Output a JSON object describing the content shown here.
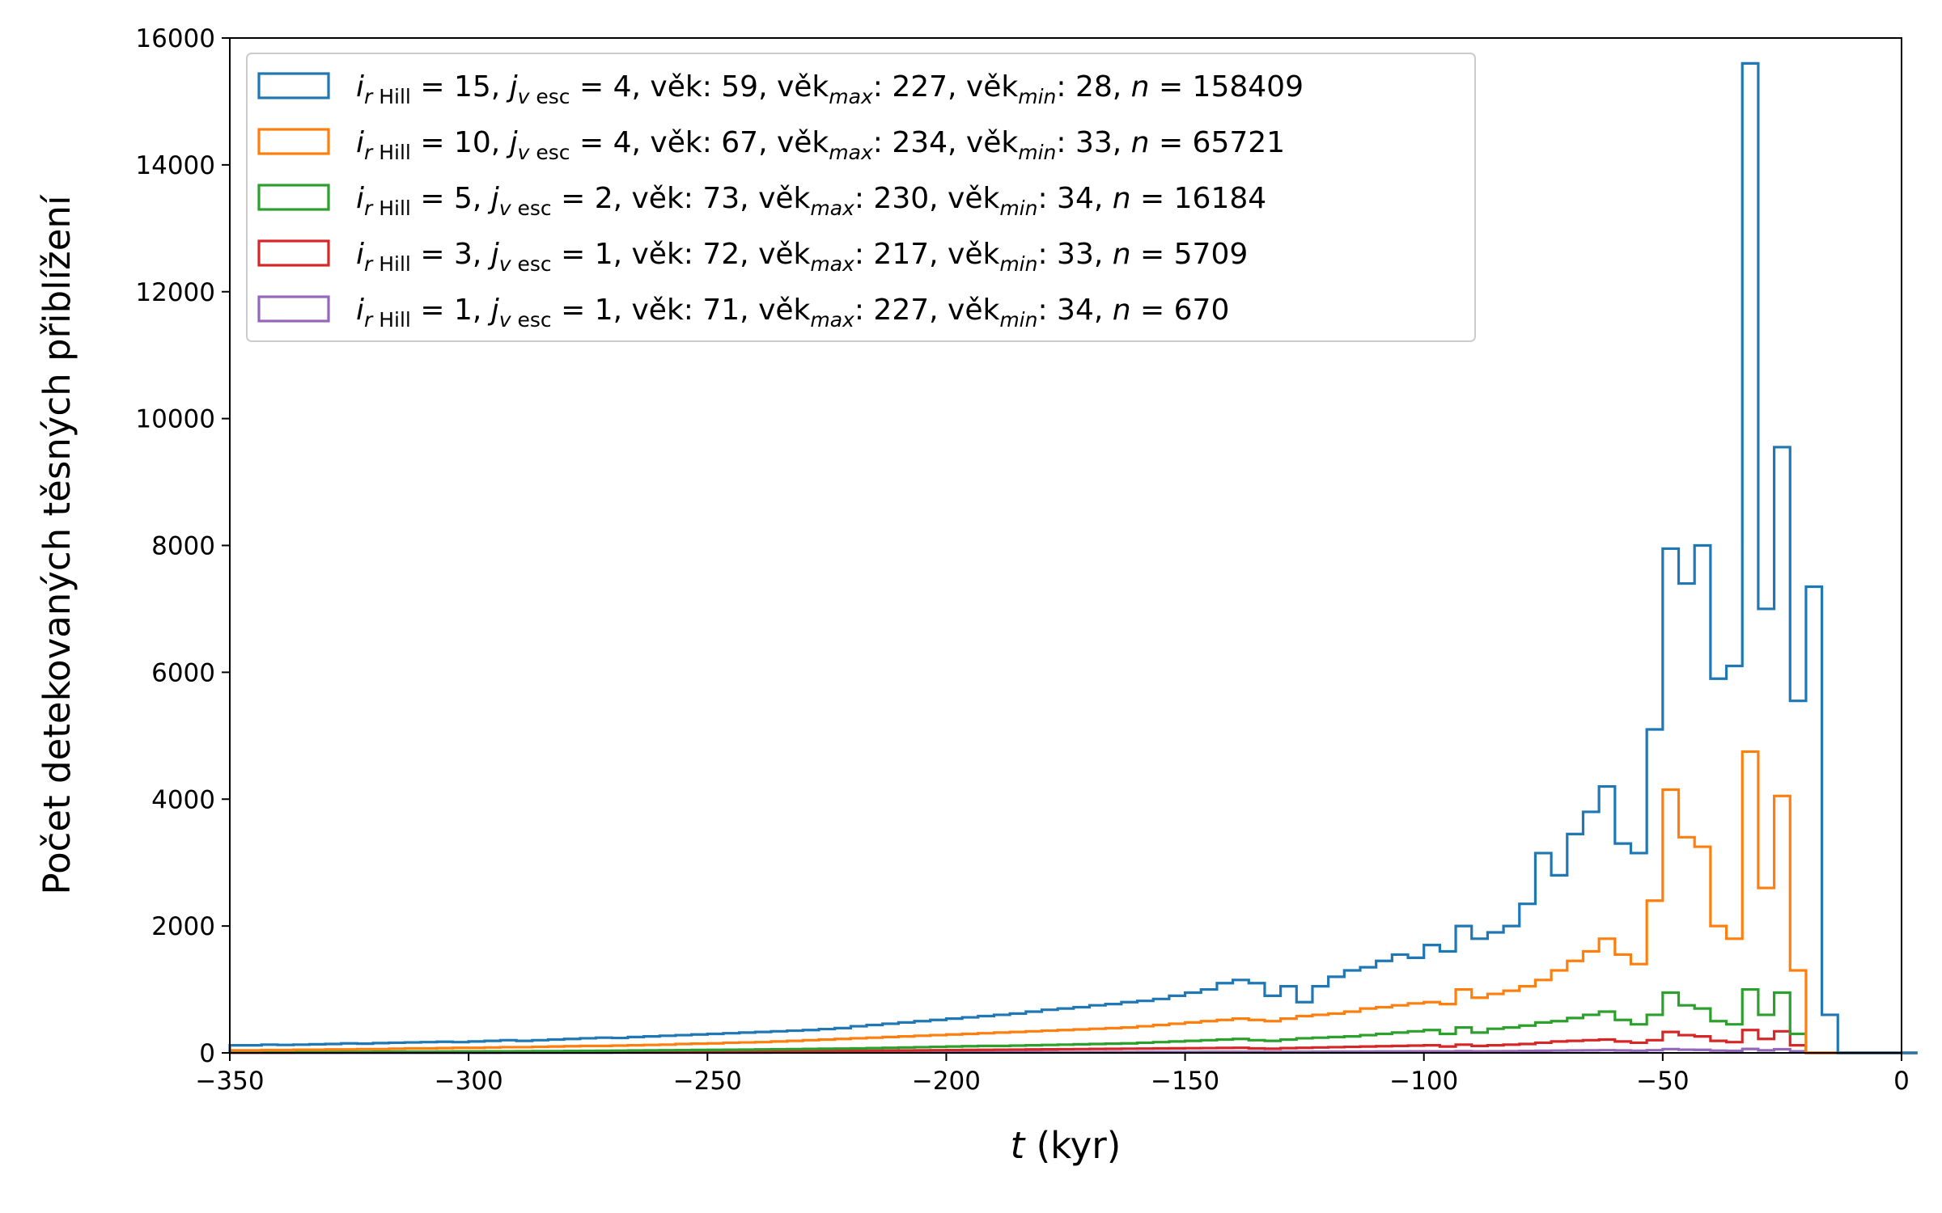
{
  "chart_data": {
    "type": "histogram-step",
    "xlabel_var": "t",
    "xlabel_unit": " (kyr)",
    "ylabel": "Počet detekovaných těsných přiblížení",
    "xlim": [
      -350,
      0
    ],
    "ylim": [
      0,
      16000
    ],
    "xticks": [
      -350,
      -300,
      -250,
      -200,
      -150,
      -100,
      -50,
      0
    ],
    "xtick_labels": [
      "−350",
      "−300",
      "−250",
      "−200",
      "−150",
      "−100",
      "−50",
      "0"
    ],
    "yticks": [
      0,
      2000,
      4000,
      6000,
      8000,
      10000,
      12000,
      14000,
      16000
    ],
    "ytick_labels": [
      "0",
      "2000",
      "4000",
      "6000",
      "8000",
      "10000",
      "12000",
      "14000",
      "16000"
    ],
    "bin_start": -350,
    "bin_width": 3.3333,
    "legend_position": "upper-left",
    "series": [
      {
        "color": "#1f77b4",
        "legend": {
          "i": "15",
          "j": "4",
          "vek": " 59",
          "vek_max": "227",
          "vek_min": "28",
          "n": "158409"
        },
        "values": [
          120,
          120,
          130,
          125,
          130,
          135,
          140,
          150,
          145,
          155,
          160,
          165,
          170,
          175,
          170,
          180,
          190,
          200,
          190,
          200,
          210,
          220,
          230,
          240,
          235,
          250,
          260,
          270,
          280,
          290,
          300,
          310,
          320,
          330,
          340,
          350,
          360,
          375,
          390,
          420,
          440,
          460,
          480,
          500,
          520,
          540,
          560,
          580,
          600,
          620,
          650,
          680,
          700,
          720,
          750,
          770,
          800,
          820,
          850,
          900,
          950,
          1000,
          1100,
          1150,
          1100,
          900,
          1050,
          800,
          1050,
          1200,
          1300,
          1350,
          1450,
          1550,
          1500,
          1700,
          1600,
          2000,
          1800,
          1900,
          2000,
          2350,
          3150,
          2800,
          3450,
          3800,
          4200,
          3300,
          3150,
          5100,
          7950,
          7400,
          8000,
          5900,
          6100,
          15600,
          7000,
          9550,
          5550,
          7350,
          600,
          0,
          0,
          0,
          0,
          0
        ]
      },
      {
        "color": "#ff7f0e",
        "legend": {
          "i": "10",
          "j": "4",
          "vek": " 67",
          "vek_max": "234",
          "vek_min": "33",
          "n": "65721"
        },
        "values": [
          40,
          40,
          45,
          45,
          50,
          50,
          55,
          55,
          60,
          60,
          65,
          70,
          70,
          75,
          80,
          80,
          85,
          90,
          90,
          95,
          100,
          105,
          110,
          110,
          115,
          120,
          125,
          130,
          140,
          145,
          150,
          160,
          165,
          170,
          180,
          190,
          200,
          210,
          220,
          230,
          240,
          250,
          260,
          270,
          280,
          290,
          300,
          310,
          320,
          330,
          340,
          350,
          360,
          370,
          380,
          390,
          400,
          420,
          440,
          460,
          480,
          500,
          520,
          540,
          520,
          500,
          540,
          580,
          600,
          620,
          650,
          700,
          720,
          750,
          780,
          800,
          770,
          1000,
          870,
          930,
          980,
          1050,
          1150,
          1300,
          1450,
          1600,
          1800,
          1550,
          1400,
          2400,
          4150,
          3400,
          3250,
          2000,
          1800,
          4750,
          2600,
          4050,
          1300,
          0,
          0,
          0,
          0,
          0,
          0,
          0
        ]
      },
      {
        "color": "#2ca02c",
        "legend": {
          "i": " 5",
          "j": "2",
          "vek": " 73",
          "vek_max": "230",
          "vek_min": "34",
          "n": "16184"
        },
        "values": [
          10,
          10,
          12,
          12,
          14,
          14,
          15,
          16,
          17,
          18,
          19,
          20,
          20,
          21,
          22,
          23,
          24,
          25,
          26,
          27,
          28,
          30,
          32,
          34,
          36,
          38,
          40,
          42,
          44,
          46,
          48,
          50,
          52,
          55,
          58,
          60,
          62,
          65,
          68,
          70,
          75,
          80,
          85,
          90,
          95,
          100,
          105,
          110,
          110,
          115,
          120,
          125,
          130,
          135,
          140,
          145,
          150,
          160,
          170,
          180,
          190,
          200,
          210,
          220,
          200,
          190,
          210,
          230,
          240,
          250,
          260,
          280,
          300,
          320,
          340,
          360,
          300,
          400,
          320,
          380,
          400,
          430,
          480,
          500,
          550,
          600,
          650,
          520,
          450,
          600,
          950,
          750,
          700,
          500,
          450,
          1000,
          600,
          950,
          300,
          0,
          0,
          0,
          0,
          0,
          0,
          0
        ]
      },
      {
        "color": "#d62728",
        "legend": {
          "i": " 3",
          "j": "1",
          "vek": " 72",
          "vek_max": "217",
          "vek_min": "33",
          "n": "5709"
        },
        "values": [
          5,
          5,
          5,
          5,
          6,
          6,
          6,
          7,
          7,
          7,
          8,
          8,
          8,
          9,
          9,
          10,
          10,
          11,
          11,
          12,
          12,
          13,
          14,
          15,
          16,
          17,
          18,
          19,
          20,
          21,
          22,
          23,
          24,
          25,
          26,
          27,
          28,
          29,
          30,
          32,
          34,
          36,
          38,
          40,
          42,
          44,
          46,
          48,
          50,
          52,
          54,
          56,
          58,
          60,
          62,
          64,
          66,
          68,
          70,
          72,
          74,
          76,
          78,
          80,
          70,
          65,
          75,
          80,
          85,
          90,
          95,
          100,
          105,
          110,
          115,
          120,
          100,
          130,
          110,
          120,
          130,
          140,
          160,
          180,
          190,
          200,
          210,
          180,
          160,
          200,
          330,
          280,
          260,
          190,
          170,
          360,
          220,
          340,
          120,
          0,
          0,
          0,
          0,
          0,
          0,
          0
        ]
      },
      {
        "color": "#9467bd",
        "legend": {
          "i": " 1",
          "j": "1",
          "vek": " 71",
          "vek_max": "227",
          "vek_min": "34",
          "n": "670"
        },
        "values": [
          1,
          1,
          1,
          1,
          1,
          1,
          1,
          1,
          1,
          2,
          2,
          2,
          2,
          2,
          2,
          2,
          2,
          3,
          3,
          3,
          3,
          3,
          3,
          3,
          4,
          4,
          4,
          4,
          4,
          5,
          5,
          5,
          5,
          5,
          6,
          6,
          6,
          6,
          7,
          7,
          7,
          8,
          8,
          8,
          9,
          9,
          9,
          10,
          10,
          10,
          11,
          11,
          12,
          12,
          12,
          13,
          13,
          14,
          14,
          15,
          15,
          16,
          16,
          17,
          16,
          15,
          16,
          17,
          18,
          19,
          20,
          21,
          22,
          23,
          24,
          25,
          22,
          28,
          24,
          26,
          28,
          30,
          33,
          36,
          38,
          40,
          42,
          38,
          34,
          42,
          60,
          50,
          48,
          36,
          32,
          62,
          40,
          58,
          24,
          0,
          0,
          0,
          0,
          0,
          0,
          0
        ]
      }
    ]
  }
}
